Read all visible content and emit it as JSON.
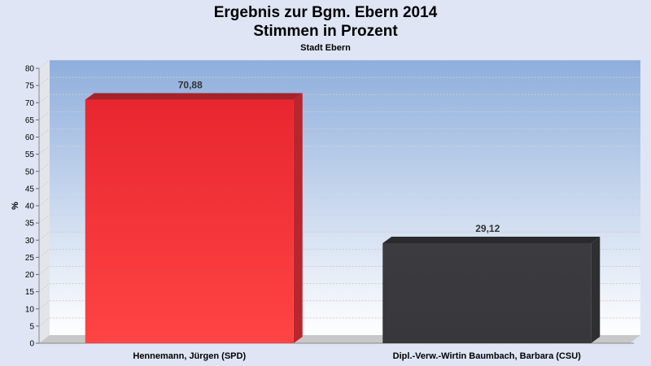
{
  "chart_data": {
    "type": "bar",
    "title_line1": "Ergebnis zur Bgm. Ebern 2014",
    "title_line2": "Stimmen in Prozent",
    "subtitle": "Stadt Ebern",
    "xlabel": "",
    "ylabel": "%",
    "ylim": [
      0,
      80
    ],
    "ytick_step": 5,
    "categories": [
      "Hennemann, Jürgen (SPD)",
      "Dipl.-Verw.-Wirtin Baumbach, Barbara (CSU)"
    ],
    "values": [
      70.88,
      29.12
    ],
    "value_labels": [
      "70,88",
      "29,12"
    ],
    "colors": [
      "#ee2a33",
      "#3a3a3e"
    ],
    "grid": true,
    "legend": "none"
  }
}
